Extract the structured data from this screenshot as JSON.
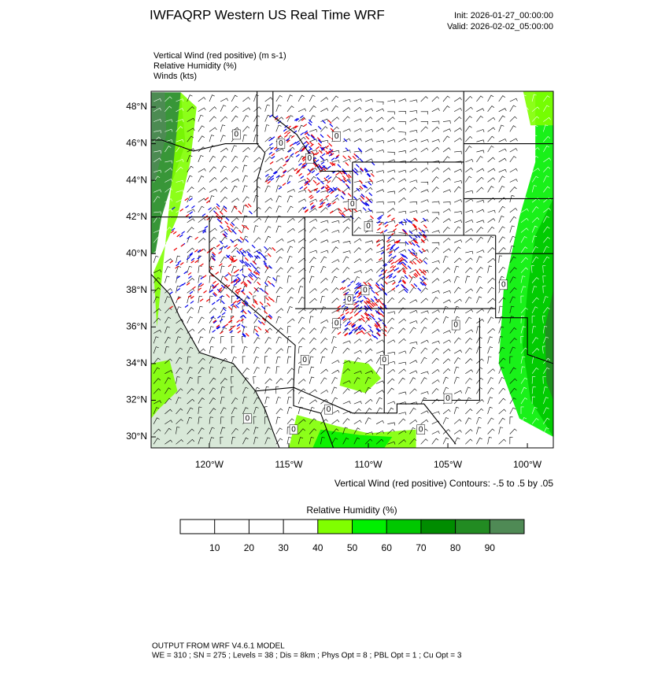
{
  "title": "IWFAQRP Western US Real Time WRF",
  "init": "Init: 2026-01-27_00:00:00",
  "valid": "Valid: 2026-02-02_05:00:00",
  "fields": [
    "Vertical Wind (red positive)   (m s-1)",
    "Relative Humidity   (%)",
    "Winds   (kts)"
  ],
  "map": {
    "xlim": [
      -123.66,
      -98.37
    ],
    "ylim": [
      29.4,
      48.86
    ],
    "xticks": [
      {
        "value": -120,
        "label": "120°W"
      },
      {
        "value": -115,
        "label": "115°W"
      },
      {
        "value": -110,
        "label": "110°W"
      },
      {
        "value": -105,
        "label": "105°W"
      },
      {
        "value": -100,
        "label": "100°W"
      }
    ],
    "yticks": [
      {
        "value": 30,
        "label": "30°N"
      },
      {
        "value": 32,
        "label": "32°N"
      },
      {
        "value": 34,
        "label": "34°N"
      },
      {
        "value": 36,
        "label": "36°N"
      },
      {
        "value": 38,
        "label": "38°N"
      },
      {
        "value": 40,
        "label": "40°N"
      },
      {
        "value": 42,
        "label": "42°N"
      },
      {
        "value": 44,
        "label": "44°N"
      },
      {
        "value": 46,
        "label": "46°N"
      },
      {
        "value": 48,
        "label": "48°N"
      }
    ],
    "contour_labels": [
      "0",
      "0",
      "0",
      "0",
      "0",
      "0",
      "0",
      "0",
      "0",
      "0",
      "0",
      "0",
      "0",
      "0",
      "0",
      "0",
      "0",
      "0"
    ]
  },
  "contour_note": "Vertical Wind (red positive) Contours: -.5 to .5 by .05",
  "colorbar": {
    "title": "Relative Humidity  (%)",
    "range": [
      0,
      100
    ],
    "ticks": [
      10,
      20,
      30,
      40,
      50,
      60,
      70,
      80,
      90
    ],
    "colors": [
      "#ffffff",
      "#ffffff",
      "#ffffff",
      "#ffffff",
      "#80ff00",
      "#00f000",
      "#00c800",
      "#008c00",
      "#228b22",
      "#4f8a55"
    ]
  },
  "footer": [
    "OUTPUT FROM WRF V4.6.1 MODEL",
    "WE = 310 ; SN = 275 ; Levels = 38 ; Dis = 8km ; Phys Opt = 8 ; PBL Opt = 1 ; Cu Opt = 3"
  ]
}
